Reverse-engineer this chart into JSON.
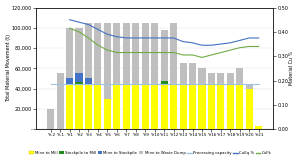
{
  "categories": [
    "Yr-2",
    "Yr-1",
    "Yr1",
    "Yr2",
    "Yr3",
    "Yr4",
    "Yr5",
    "Yr6",
    "Yr7",
    "Yr8",
    "Yr9",
    "Yr10",
    "Yr11",
    "Yr12",
    "Yr13",
    "Yr14",
    "Yr15",
    "Yr16",
    "Yr17",
    "Yr18",
    "Yr19",
    "Yr20",
    "Yr21"
  ],
  "mine_to_mill": [
    0,
    0,
    45000,
    45000,
    45000,
    45000,
    30000,
    45000,
    45000,
    45000,
    45000,
    45000,
    45000,
    45000,
    45000,
    45000,
    45000,
    45000,
    45000,
    45000,
    45000,
    40000,
    3000
  ],
  "stockpile_to_mill": [
    0,
    0,
    0,
    2000,
    0,
    0,
    0,
    0,
    0,
    0,
    0,
    0,
    3000,
    0,
    0,
    0,
    0,
    0,
    0,
    0,
    0,
    0,
    0
  ],
  "mine_to_stockpile": [
    0,
    0,
    5000,
    8000,
    5000,
    0,
    0,
    0,
    0,
    0,
    0,
    0,
    0,
    0,
    0,
    0,
    0,
    0,
    0,
    0,
    0,
    0,
    0
  ],
  "mine_to_waste": [
    20000,
    55000,
    50000,
    45000,
    55000,
    60000,
    75000,
    60000,
    60000,
    60000,
    60000,
    60000,
    50000,
    60000,
    20000,
    20000,
    15000,
    10000,
    10000,
    10000,
    15000,
    5000,
    0
  ],
  "processing_capacity": [
    45000,
    45000,
    45000,
    45000,
    45000,
    45000,
    45000,
    45000,
    45000,
    45000,
    45000,
    45000,
    45000,
    45000,
    45000,
    45000,
    45000,
    45000,
    45000,
    45000,
    45000,
    45000,
    45000
  ],
  "cutoff_n": [
    null,
    null,
    0.45,
    0.44,
    0.43,
    0.41,
    0.39,
    0.38,
    0.375,
    0.375,
    0.375,
    0.375,
    0.375,
    0.375,
    0.36,
    0.355,
    0.345,
    0.345,
    0.35,
    0.355,
    0.365,
    0.375,
    0.375
  ],
  "cufk": [
    null,
    null,
    0.415,
    0.4,
    0.375,
    0.345,
    0.325,
    0.315,
    0.315,
    0.315,
    0.315,
    0.315,
    0.315,
    0.315,
    0.305,
    0.305,
    0.295,
    0.305,
    0.315,
    0.325,
    0.335,
    0.34,
    0.34
  ],
  "color_mine_to_mill": "#FFFF00",
  "color_stockpile_to_mill": "#228B22",
  "color_mine_to_stockpile": "#4472C4",
  "color_mine_to_waste": "#BFBFBF",
  "color_processing": "#9DC3E6",
  "color_cutoff_n": "#4472C4",
  "color_cufk": "#70AD47",
  "ylim_left": [
    0,
    120000
  ],
  "ylim_right": [
    0,
    0.5
  ],
  "yticks_left": [
    0,
    20000,
    40000,
    60000,
    80000,
    100000,
    120000
  ],
  "ytick_labels_left": [
    "-",
    "20,000",
    "40,000",
    "60,000",
    "80,000",
    "100,000",
    "120,000"
  ],
  "yticks_right": [
    0.0,
    0.1,
    0.2,
    0.3,
    0.4,
    0.5
  ],
  "ytick_labels_right": [
    "0.00",
    "0.10",
    "0.20",
    "0.30",
    "0.40",
    "0.50"
  ],
  "ylabel_left": "Total Material Movement (t)",
  "ylabel_right": "Material Cu %",
  "bg_color": "#FFFFFF"
}
